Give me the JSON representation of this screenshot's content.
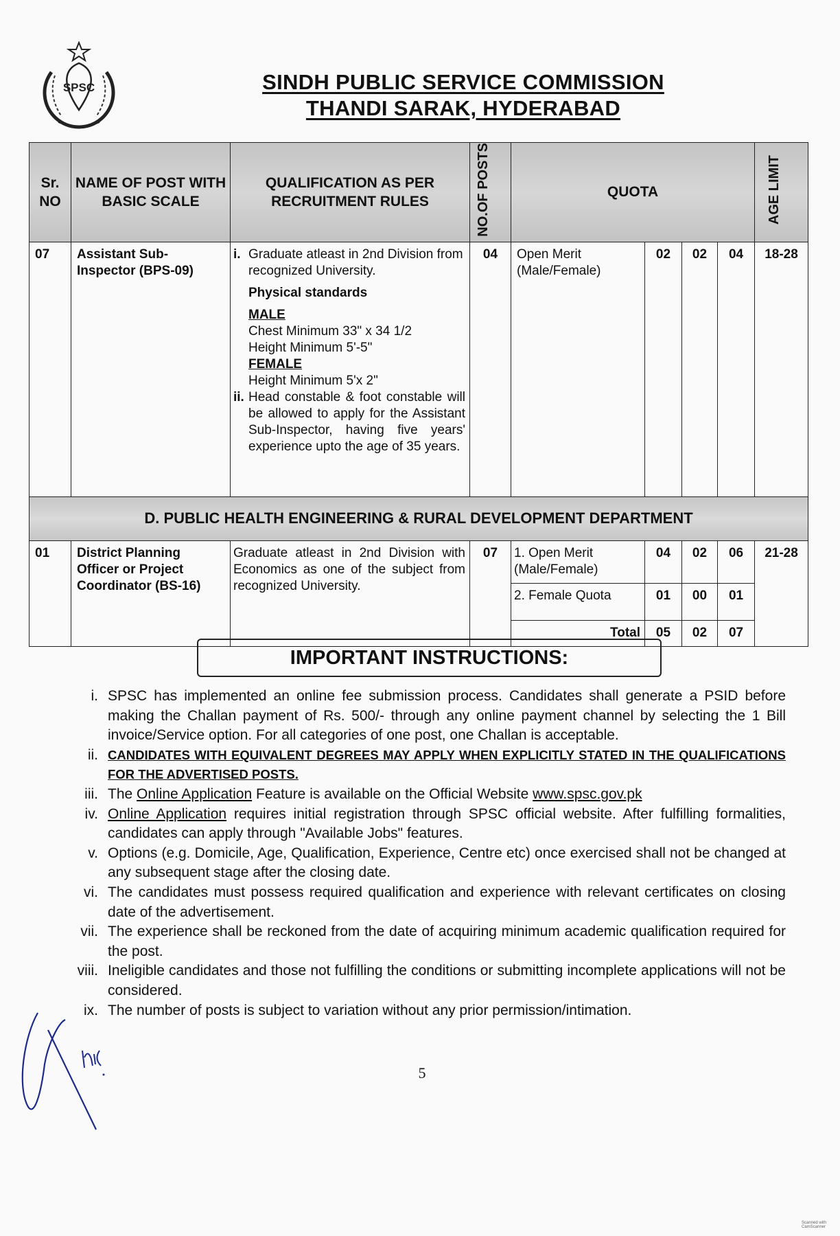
{
  "header": {
    "logo_text": "SPSC",
    "title_line1": "SINDH PUBLIC SERVICE COMMISSION",
    "title_line2": "THANDI SARAK, HYDERABAD"
  },
  "table": {
    "columns": {
      "sr": "Sr. NO",
      "name": "NAME OF POST WITH BASIC SCALE",
      "qualification": "QUALIFICATION AS PER RECRUITMENT RULES",
      "posts": "NO.OF POSTS",
      "quota": "QUOTA",
      "age": "AGE LIMIT"
    },
    "row1": {
      "sr": "07",
      "name": "Assistant Sub-Inspector (BPS-09)",
      "qual_i_num": "i.",
      "qual_i": "Graduate atleast in 2nd Division from recognized University.",
      "physical_heading": "Physical standards",
      "male_heading": "MALE",
      "male_chest": "Chest Minimum 33\" x 34 1/2",
      "male_height": "Height Minimum 5'-5\"",
      "female_heading": "FEMALE",
      "female_height": "Height Minimum 5'x 2\"",
      "qual_ii_num": "ii.",
      "qual_ii": "Head constable & foot constable will be allowed to apply for the Assistant Sub-Inspector, having five years' experience upto the age of 35 years.",
      "posts": "04",
      "quota_label": "Open Merit (Male/Female)",
      "q1": "02",
      "q2": "02",
      "q3": "04",
      "age": "18-28"
    },
    "section_title": "D. PUBLIC HEALTH ENGINEERING & RURAL DEVELOPMENT DEPARTMENT",
    "row2": {
      "sr": "01",
      "name": "District Planning Officer or Project Coordinator (BS-16)",
      "qualification": "Graduate atleast in 2nd Division with Economics as one of the subject from recognized University.",
      "posts": "07",
      "age": "21-28",
      "quotas": [
        {
          "label": "1.  Open Merit (Male/Female)",
          "q1": "04",
          "q2": "02",
          "q3": "06"
        },
        {
          "label": "2.  Female Quota",
          "q1": "01",
          "q2": "00",
          "q3": "01"
        },
        {
          "label": "Total",
          "q1": "05",
          "q2": "02",
          "q3": "07"
        }
      ]
    }
  },
  "instructions": {
    "heading": "IMPORTANT INSTRUCTIONS:",
    "items": [
      {
        "num": "i.",
        "text": "SPSC has implemented an online fee submission process. Candidates shall generate a PSID before making the Challan payment of Rs. 500/- through any online payment channel by selecting the 1 Bill invoice/Service option. For all categories of one post, one Challan is acceptable."
      },
      {
        "num": "ii.",
        "text": "CANDIDATES WITH EQUIVALENT DEGREES MAY APPLY WHEN EXPLICITLY STATED IN THE QUALIFICATIONS FOR THE ADVERTISED POSTS."
      },
      {
        "num": "iii.",
        "pre": "The ",
        "link1": "Online Application",
        "mid": " Feature is available on the Official Website ",
        "link2": "www.spsc.gov.pk"
      },
      {
        "num": "iv.",
        "link1": "Online Application",
        "rest": " requires initial registration through SPSC official website. After fulfilling formalities, candidates can apply through \"Available Jobs\" features."
      },
      {
        "num": "v.",
        "text": "Options (e.g. Domicile, Age, Qualification, Experience, Centre etc) once exercised shall not be changed at any subsequent stage after the closing date."
      },
      {
        "num": "vi.",
        "text": "The candidates must possess required qualification and experience with relevant certificates on closing date of the advertisement."
      },
      {
        "num": "vii.",
        "text": "The experience shall be reckoned from the date of acquiring minimum academic qualification required for the post."
      },
      {
        "num": "viii.",
        "text": "Ineligible candidates and those not fulfilling the conditions or submitting incomplete applications will not be considered."
      },
      {
        "num": "ix.",
        "text": "The number of posts is subject to variation without any prior permission/intimation."
      }
    ]
  },
  "page_number": "5",
  "watermark": "Scanned with CamScanner",
  "colors": {
    "header_gray": "#c8c8c8",
    "signature_ink": "#1b2b8c"
  }
}
